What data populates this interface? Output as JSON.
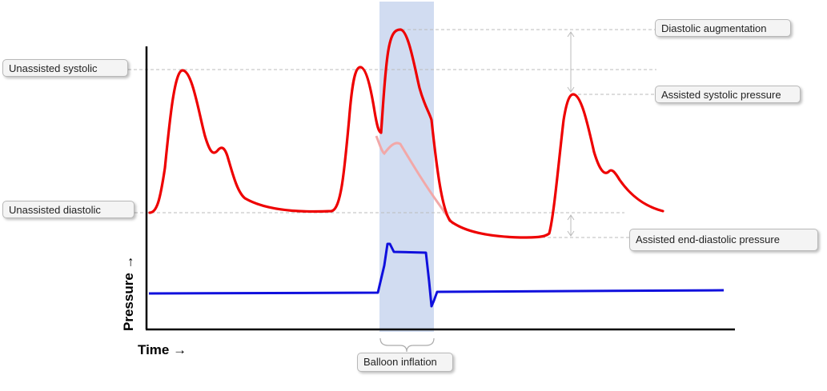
{
  "labels": {
    "unassisted_systolic": "Unassisted systolic",
    "unassisted_diastolic": "Unassisted diastolic",
    "diastolic_augmentation": "Diastolic augmentation",
    "assisted_systolic_pressure": "Assisted systolic pressure",
    "assisted_end_diastolic_pressure": "Assisted end-diastolic pressure",
    "balloon_inflation": "Balloon inflation"
  },
  "axes": {
    "y_label": "Pressure →",
    "x_label": "Time →"
  },
  "colors": {
    "arterial_pressure": "#ee0000",
    "unassisted_ghost": "#f2a8a8",
    "balloon_pressure": "#1010dd",
    "inflation_band": "#c9d6ee",
    "guide_lines": "#bbbbbb",
    "axis": "#000000"
  }
}
